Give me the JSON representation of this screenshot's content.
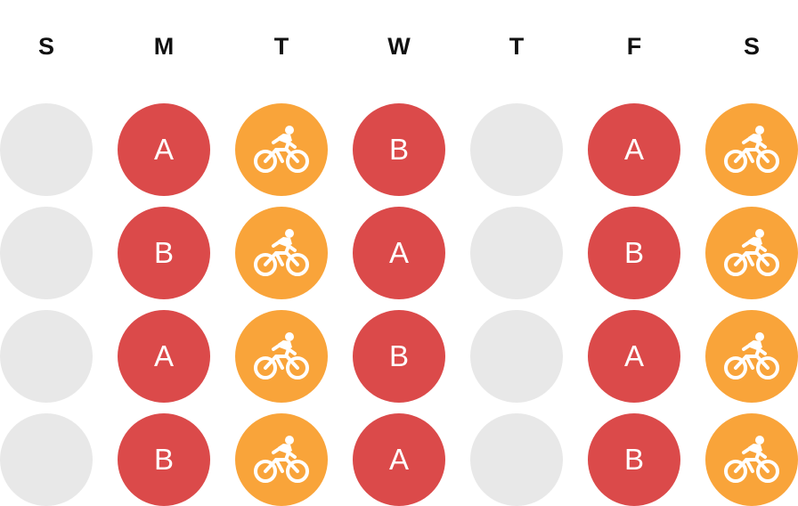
{
  "colors": {
    "empty": "#e8e8e8",
    "workout": "#db4a4a",
    "cycling": "#f9a43a",
    "text": "#ffffff",
    "header_text": "#111111"
  },
  "days": [
    "S",
    "M",
    "T",
    "W",
    "T",
    "F",
    "S"
  ],
  "weeks": [
    [
      {
        "type": "empty",
        "label": "",
        "icon": ""
      },
      {
        "type": "workout",
        "label": "A",
        "icon": ""
      },
      {
        "type": "cycling",
        "label": "",
        "icon": "bicycle-icon"
      },
      {
        "type": "workout",
        "label": "B",
        "icon": ""
      },
      {
        "type": "empty",
        "label": "",
        "icon": ""
      },
      {
        "type": "workout",
        "label": "A",
        "icon": ""
      },
      {
        "type": "cycling",
        "label": "",
        "icon": "bicycle-icon"
      }
    ],
    [
      {
        "type": "empty",
        "label": "",
        "icon": ""
      },
      {
        "type": "workout",
        "label": "B",
        "icon": ""
      },
      {
        "type": "cycling",
        "label": "",
        "icon": "bicycle-icon"
      },
      {
        "type": "workout",
        "label": "A",
        "icon": ""
      },
      {
        "type": "empty",
        "label": "",
        "icon": ""
      },
      {
        "type": "workout",
        "label": "B",
        "icon": ""
      },
      {
        "type": "cycling",
        "label": "",
        "icon": "bicycle-icon"
      }
    ],
    [
      {
        "type": "empty",
        "label": "",
        "icon": ""
      },
      {
        "type": "workout",
        "label": "A",
        "icon": ""
      },
      {
        "type": "cycling",
        "label": "",
        "icon": "bicycle-icon"
      },
      {
        "type": "workout",
        "label": "B",
        "icon": ""
      },
      {
        "type": "empty",
        "label": "",
        "icon": ""
      },
      {
        "type": "workout",
        "label": "A",
        "icon": ""
      },
      {
        "type": "cycling",
        "label": "",
        "icon": "bicycle-icon"
      }
    ],
    [
      {
        "type": "empty",
        "label": "",
        "icon": ""
      },
      {
        "type": "workout",
        "label": "B",
        "icon": ""
      },
      {
        "type": "cycling",
        "label": "",
        "icon": "bicycle-icon"
      },
      {
        "type": "workout",
        "label": "A",
        "icon": ""
      },
      {
        "type": "empty",
        "label": "",
        "icon": ""
      },
      {
        "type": "workout",
        "label": "B",
        "icon": ""
      },
      {
        "type": "cycling",
        "label": "",
        "icon": "bicycle-icon"
      }
    ]
  ]
}
